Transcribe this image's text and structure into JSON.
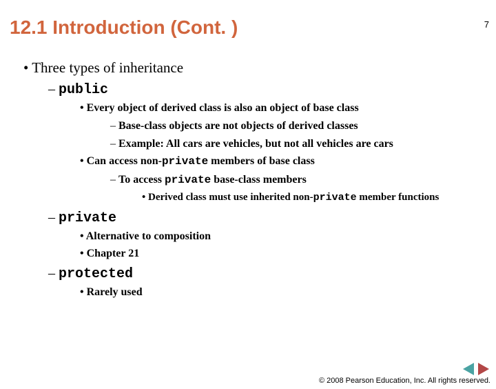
{
  "page_number": "7",
  "title_color": "#d1653d",
  "title": "12.1 Introduction (Cont. )",
  "b1": "Three types of inheritance",
  "b2a_code": "public",
  "b3a": "Every object of derived class is also an object of base class",
  "b4a": "Base-class objects are not objects of derived classes",
  "b4b": "Example: All cars are vehicles, but not all vehicles are cars",
  "b3b_pre": "Can access non-",
  "b3b_code": "private",
  "b3b_post": " members of base class",
  "b4c_pre": "To access ",
  "b4c_code": "private",
  "b4c_post": " base-class members",
  "b5a_pre": "Derived class must use inherited non-",
  "b5a_code": "private",
  "b5a_post": " member functions",
  "b2b_code": "private",
  "b3c": "Alternative to composition",
  "b3d": "Chapter 21",
  "b2c_code": "protected",
  "b3e": "Rarely used",
  "footer": "© 2008 Pearson Education, Inc. All rights reserved.",
  "arrow_left_color": "#4aa3a3",
  "arrow_right_color": "#b34747"
}
